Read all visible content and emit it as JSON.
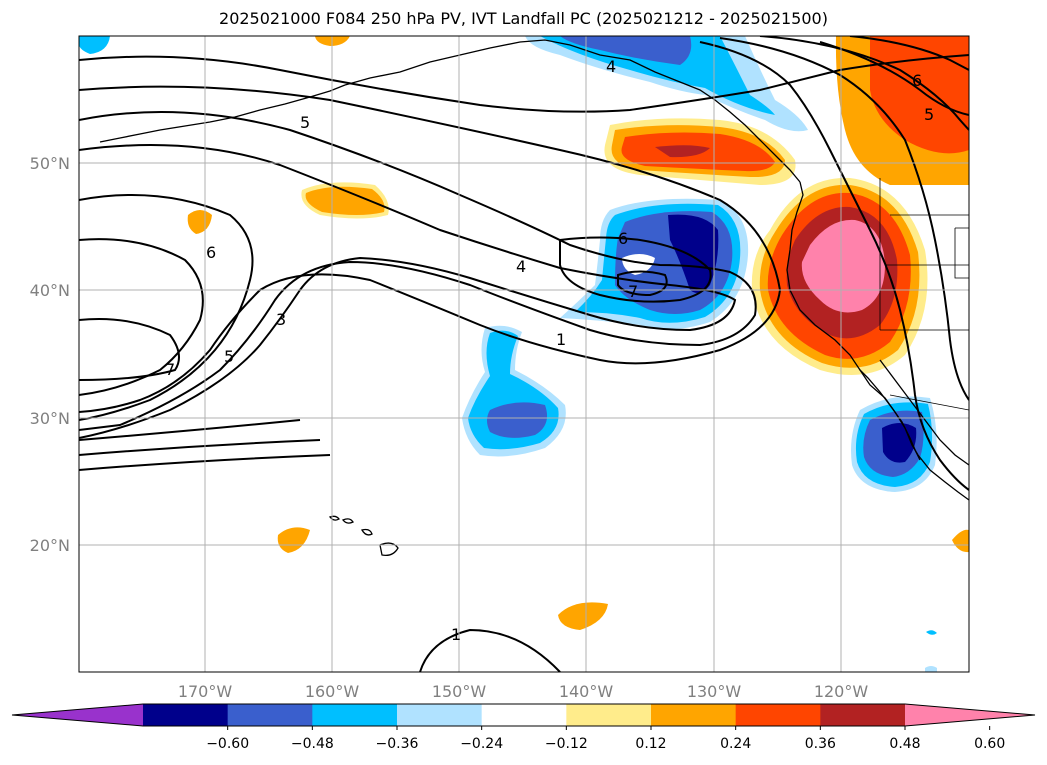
{
  "title": "2025021000 F084 250 hPa PV, IVT Landfall PC (2025021212 - 2025021500)",
  "lat_labels": [
    "50°N",
    "40°N",
    "30°N",
    "20°N"
  ],
  "lon_labels": [
    "170°W",
    "160°W",
    "150°W",
    "140°W",
    "130°W",
    "120°W"
  ],
  "contour_labels": [
    "4",
    "6",
    "5",
    "5",
    "6",
    "4",
    "6",
    "7",
    "3",
    "5",
    "7",
    "1",
    "1"
  ],
  "colorbar": {
    "labels": [
      "−0.60",
      "−0.48",
      "−0.36",
      "−0.24",
      "−0.12",
      "0.12",
      "0.24",
      "0.36",
      "0.48",
      "0.60"
    ],
    "levels": [
      -0.6,
      -0.48,
      -0.36,
      -0.24,
      -0.12,
      0.12,
      0.24,
      0.36,
      0.48,
      0.6
    ],
    "colors": [
      "#9932cc",
      "#00008b",
      "#3a5fcd",
      "#00bfff",
      "#b0e2ff",
      "#ffffff",
      "#ffec8b",
      "#ffa500",
      "#ff4500",
      "#b22222",
      "#ff82ab"
    ]
  }
}
